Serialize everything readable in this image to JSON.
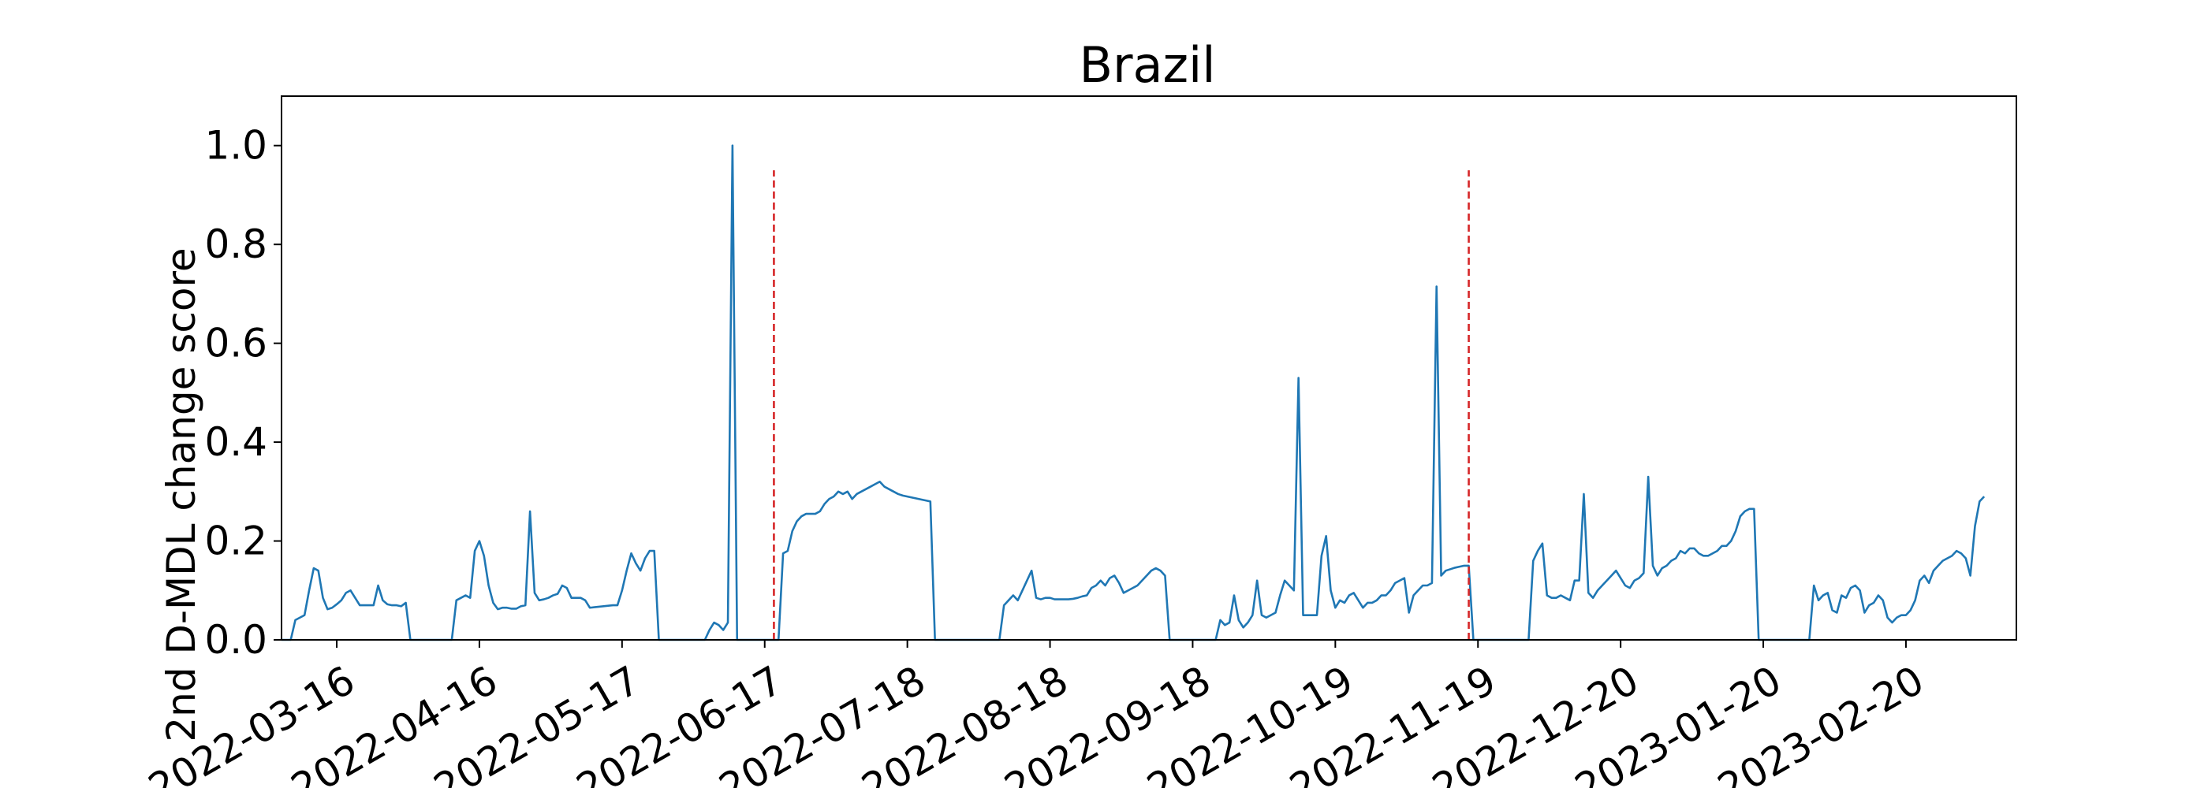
{
  "chart_data": {
    "type": "line",
    "title": "Brazil",
    "xlabel": "",
    "ylabel": "2nd D-MDL change score",
    "x_start": "2022-03-04",
    "x_end": "2023-03-16",
    "xlim": [
      "2022-03-04",
      "2023-03-16"
    ],
    "ylim": [
      0,
      1.1
    ],
    "yticks": [
      0.0,
      0.2,
      0.4,
      0.6,
      0.8,
      1.0
    ],
    "ytick_labels": [
      "0.0",
      "0.2",
      "0.4",
      "0.6",
      "0.8",
      "1.0"
    ],
    "xticks": [
      "2022-03-16",
      "2022-04-16",
      "2022-05-17",
      "2022-06-17",
      "2022-07-18",
      "2022-08-18",
      "2022-09-18",
      "2022-10-19",
      "2022-11-19",
      "2022-12-20",
      "2023-01-20",
      "2023-02-20"
    ],
    "grid": false,
    "legend": "none",
    "series": [
      {
        "color": "#1f77b4",
        "values": [
          0,
          0,
          0,
          0.04,
          0.045,
          0.05,
          0.1,
          0.145,
          0.14,
          0.085,
          0.062,
          0.065,
          0.072,
          0.08,
          0.095,
          0.1,
          0.085,
          0.07,
          0.07,
          0.07,
          0.07,
          0.11,
          0.08,
          0.072,
          0.07,
          0.07,
          0.068,
          0.075,
          0,
          0,
          0,
          0,
          0,
          0,
          0,
          0,
          0,
          0,
          0.08,
          0.085,
          0.09,
          0.085,
          0.18,
          0.2,
          0.17,
          0.11,
          0.075,
          0.062,
          0.065,
          0.065,
          0.063,
          0.063,
          0.068,
          0.07,
          0.26,
          0.095,
          0.08,
          0.082,
          0.085,
          0.09,
          0.093,
          0.11,
          0.105,
          0.085,
          0.085,
          0.085,
          0.08,
          0.065,
          0.066,
          0.067,
          0.068,
          0.069,
          0.07,
          0.07,
          0.1,
          0.14,
          0.175,
          0.155,
          0.14,
          0.165,
          0.18,
          0.18,
          0,
          0,
          0,
          0,
          0,
          0,
          0,
          0,
          0,
          0,
          0,
          0.02,
          0.035,
          0.03,
          0.02,
          0.035,
          1.0,
          0,
          0,
          0,
          0,
          0,
          0,
          0,
          0,
          0,
          0,
          0.175,
          0.18,
          0.22,
          0.24,
          0.25,
          0.255,
          0.255,
          0.255,
          0.26,
          0.275,
          0.285,
          0.29,
          0.3,
          0.295,
          0.3,
          0.285,
          0.295,
          0.3,
          0.305,
          0.31,
          0.315,
          0.32,
          0.31,
          0.305,
          0.3,
          0.295,
          0.292,
          0.29,
          0.288,
          0.286,
          0.284,
          0.282,
          0.28,
          0,
          0,
          0,
          0,
          0,
          0,
          0,
          0,
          0,
          0,
          0,
          0,
          0,
          0,
          0,
          0.07,
          0.08,
          0.09,
          0.08,
          0.1,
          0.12,
          0.14,
          0.085,
          0.082,
          0.085,
          0.085,
          0.082,
          0.082,
          0.082,
          0.082,
          0.083,
          0.085,
          0.088,
          0.09,
          0.105,
          0.11,
          0.12,
          0.11,
          0.125,
          0.13,
          0.115,
          0.095,
          0.1,
          0.105,
          0.11,
          0.12,
          0.13,
          0.14,
          0.145,
          0.14,
          0.13,
          0,
          0,
          0,
          0,
          0,
          0,
          0,
          0,
          0,
          0,
          0,
          0.04,
          0.03,
          0.035,
          0.09,
          0.04,
          0.025,
          0.035,
          0.05,
          0.12,
          0.05,
          0.045,
          0.05,
          0.055,
          0.09,
          0.12,
          0.11,
          0.1,
          0.53,
          0.05,
          0.05,
          0.05,
          0.05,
          0.17,
          0.21,
          0.1,
          0.065,
          0.08,
          0.075,
          0.09,
          0.095,
          0.08,
          0.065,
          0.075,
          0.075,
          0.08,
          0.09,
          0.09,
          0.1,
          0.115,
          0.12,
          0.125,
          0.055,
          0.09,
          0.1,
          0.11,
          0.11,
          0.115,
          0.715,
          0.13,
          0.14,
          0.143,
          0.146,
          0.148,
          0.15,
          0.15,
          0,
          0,
          0,
          0,
          0,
          0,
          0,
          0,
          0,
          0,
          0,
          0,
          0,
          0.16,
          0.18,
          0.195,
          0.09,
          0.085,
          0.085,
          0.09,
          0.085,
          0.08,
          0.12,
          0.12,
          0.295,
          0.095,
          0.085,
          0.1,
          0.11,
          0.12,
          0.13,
          0.14,
          0.125,
          0.11,
          0.105,
          0.12,
          0.125,
          0.135,
          0.33,
          0.15,
          0.13,
          0.145,
          0.15,
          0.16,
          0.165,
          0.18,
          0.175,
          0.185,
          0.185,
          0.175,
          0.17,
          0.17,
          0.175,
          0.18,
          0.19,
          0.19,
          0.2,
          0.22,
          0.25,
          0.26,
          0.265,
          0.265,
          0,
          0,
          0,
          0,
          0,
          0,
          0,
          0,
          0,
          0,
          0,
          0,
          0.11,
          0.08,
          0.09,
          0.095,
          0.06,
          0.055,
          0.09,
          0.085,
          0.105,
          0.11,
          0.1,
          0.055,
          0.07,
          0.075,
          0.09,
          0.08,
          0.045,
          0.035,
          0.045,
          0.05,
          0.05,
          0.06,
          0.08,
          0.12,
          0.13,
          0.115,
          0.14,
          0.15,
          0.16,
          0.165,
          0.17,
          0.18,
          0.175,
          0.165,
          0.13,
          0.23,
          0.28,
          0.29
        ]
      }
    ],
    "change_points": [
      {
        "date": "2022-06-19",
        "color": "#d62728",
        "style": "dashed"
      },
      {
        "date": "2022-11-17",
        "color": "#d62728",
        "style": "dashed"
      }
    ]
  }
}
